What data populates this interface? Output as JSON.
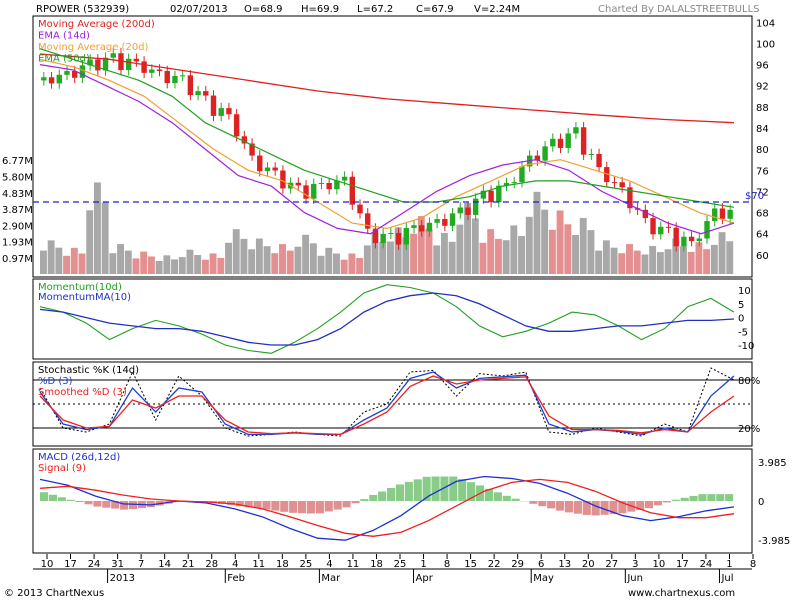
{
  "header": {
    "symbol": "RPOWER (532939)",
    "date": "02/07/2013",
    "open": "O=68.9",
    "high": "H=69.9",
    "low": "L=67.2",
    "close": "C=67.9",
    "volume": "V=2.24M",
    "credit": "Charted By DALALSTREETBULLS"
  },
  "footer": {
    "copyright": "© 2013 ChartNexus",
    "brand": "www.chartnexus.com"
  },
  "colors": {
    "up": "#22aa22",
    "down": "#dd2222",
    "ma200": "#e02020",
    "ema14": "#a020e0",
    "ma20": "#f0a030",
    "ema50": "#20a020",
    "volume_up": "#a8a8a8",
    "volume_down": "#e49090",
    "resistance": "#2020cc",
    "momentum": "#20a020",
    "momentum_ma": "#2030c0",
    "stoch_k": "#000000",
    "stoch_d": "#2040d0",
    "stoch_smooth": "#ee2020",
    "macd": "#2030d0",
    "signal": "#ee2020",
    "hist_pos": "#88cc88",
    "hist_neg": "#e09090"
  },
  "chart_data": [
    {
      "panel": "price",
      "type": "candlestick",
      "legend": [
        "Moving Average (200d)",
        "EMA (14d)",
        "Moving Average (20d)",
        "EMA (50d)"
      ],
      "y_ticks": [
        60,
        64,
        68,
        72,
        76,
        80,
        84,
        88,
        92,
        96,
        100,
        104
      ],
      "ylim": [
        56,
        105
      ],
      "volume_ticks": [
        "0.97M",
        "1.93M",
        "2.90M",
        "3.87M",
        "4.83M",
        "5.80M",
        "6.77M"
      ],
      "resistance_label": "$70",
      "resistance": 70,
      "x_dates": [
        "10",
        "17",
        "24",
        "31",
        "7",
        "14",
        "21",
        "28",
        "4",
        "11",
        "18",
        "25",
        "4",
        "11",
        "18",
        "25",
        "1",
        "8",
        "15",
        "22",
        "29",
        "6",
        "13",
        "20",
        "27",
        "3",
        "10",
        "17",
        "24",
        "1",
        "8"
      ],
      "x_months": [
        {
          "label": "2013",
          "index": 3
        },
        {
          "label": "Feb",
          "index": 8
        },
        {
          "label": "Mar",
          "index": 12
        },
        {
          "label": "Apr",
          "index": 16
        },
        {
          "label": "May",
          "index": 21
        },
        {
          "label": "Jun",
          "index": 25
        },
        {
          "label": "Jul",
          "index": 29
        }
      ],
      "weekly_close": [
        93,
        94,
        96,
        97,
        96,
        94,
        93,
        89,
        86,
        78,
        75,
        72,
        73,
        74,
        64,
        63,
        65,
        66,
        68,
        71,
        73,
        78,
        81,
        83,
        76,
        72,
        66,
        64,
        62,
        68
      ],
      "ma200": [
        98,
        97,
        95,
        93,
        91,
        89.5,
        88.5,
        87.5,
        86.5,
        85.6,
        85
      ],
      "ma200_t": [
        0,
        0.1,
        0.2,
        0.3,
        0.4,
        0.5,
        0.6,
        0.7,
        0.8,
        0.9,
        1
      ],
      "ma20": [
        97,
        95.5,
        93,
        90,
        85,
        80,
        76,
        74,
        70,
        66,
        65,
        67,
        71,
        74,
        77,
        78,
        76,
        74,
        71,
        68,
        66
      ],
      "ema14": [
        96,
        95,
        92,
        89,
        85,
        80,
        75,
        73,
        68,
        65,
        64,
        68,
        72,
        75,
        77,
        78,
        76,
        72,
        69,
        66,
        64,
        66
      ],
      "ema50": [
        99,
        97,
        95,
        93,
        90,
        85,
        82,
        79,
        76,
        74,
        72,
        70,
        70,
        71,
        73,
        74,
        74,
        73,
        72,
        71,
        70,
        69
      ],
      "volume_millions": [
        1.8,
        1.4,
        4.9,
        1.6,
        1.2,
        1.0,
        1.3,
        1.1,
        2.4,
        1.9,
        1.6,
        2.1,
        1.4,
        1.1,
        2.2,
        2.5,
        3.1,
        2.2,
        3.8,
        2.4,
        2.6,
        4.4,
        3.4,
        3.0,
        1.8,
        1.6,
        1.5,
        1.9,
        1.7,
        2.24
      ]
    },
    {
      "panel": "momentum",
      "type": "line",
      "legend": [
        "Momentum(10d)",
        "MomentumMA(10)"
      ],
      "y_ticks": [
        10,
        5,
        0,
        -5,
        -10
      ],
      "ylim": [
        -14,
        13
      ],
      "series": [
        {
          "name": "Momentum(10d)",
          "values": [
            4,
            2,
            -2,
            -8,
            -4,
            -1,
            -3,
            -6,
            -10,
            -12,
            -13,
            -9,
            -4,
            2,
            9,
            12,
            11,
            9,
            4,
            -3,
            -7,
            -5,
            -2,
            2,
            1,
            -3,
            -8,
            -4,
            4,
            7,
            2
          ]
        },
        {
          "name": "MomentumMA(10)",
          "values": [
            3,
            2,
            0,
            -2,
            -3,
            -4,
            -4,
            -5,
            -7,
            -9,
            -10,
            -10,
            -8,
            -4,
            2,
            6,
            8,
            9,
            8,
            5,
            1,
            -3,
            -5,
            -5,
            -4,
            -3,
            -3,
            -2,
            -1,
            -1,
            -0.5
          ]
        }
      ]
    },
    {
      "panel": "stochastic",
      "type": "line",
      "legend": [
        "Stochastic %K (14d)",
        "%D (3)",
        "Smoothed %D (3)"
      ],
      "y_ticks": [
        "80%",
        "20%"
      ],
      "ylim": [
        0,
        100
      ],
      "series": [
        {
          "name": "Stochastic %K (14d)",
          "values": [
            70,
            20,
            15,
            25,
            90,
            30,
            85,
            60,
            20,
            10,
            12,
            15,
            12,
            10,
            40,
            50,
            90,
            92,
            60,
            88,
            85,
            90,
            15,
            12,
            20,
            15,
            10,
            25,
            15,
            95,
            80
          ]
        },
        {
          "name": "%D (3)",
          "values": [
            65,
            25,
            18,
            22,
            70,
            40,
            70,
            65,
            25,
            12,
            12,
            14,
            12,
            12,
            30,
            45,
            82,
            90,
            70,
            82,
            84,
            86,
            25,
            15,
            18,
            16,
            12,
            20,
            15,
            60,
            85
          ]
        },
        {
          "name": "Smoothed %D (3)",
          "values": [
            60,
            30,
            20,
            22,
            55,
            45,
            60,
            60,
            30,
            15,
            13,
            14,
            13,
            12,
            25,
            40,
            72,
            85,
            75,
            80,
            82,
            84,
            35,
            18,
            18,
            17,
            14,
            18,
            15,
            40,
            60
          ]
        }
      ]
    },
    {
      "panel": "macd",
      "type": "line",
      "legend": [
        "MACD (26d,12d)",
        "Signal (9)"
      ],
      "y_ticks": [
        "3.985",
        "0",
        "-3.985"
      ],
      "ylim": [
        -5,
        5
      ],
      "series": [
        {
          "name": "MACD (26d,12d)",
          "values": [
            2.2,
            1.6,
            0.5,
            -0.3,
            -0.4,
            0,
            -0.2,
            -0.8,
            -1.6,
            -2.8,
            -3.8,
            -4.0,
            -3.0,
            -1.5,
            0.5,
            2.0,
            2.5,
            2.3,
            1.8,
            0.8,
            -0.5,
            -1.5,
            -2.0,
            -1.6,
            -1.0,
            -0.6
          ]
        },
        {
          "name": "Signal (9)",
          "values": [
            1.3,
            1.5,
            1.1,
            0.6,
            0.2,
            0.0,
            -0.1,
            -0.3,
            -0.8,
            -1.6,
            -2.5,
            -3.3,
            -3.6,
            -3.2,
            -2.0,
            -0.5,
            1.0,
            1.9,
            2.2,
            1.9,
            1.0,
            -0.2,
            -1.2,
            -1.7,
            -1.7,
            -1.3
          ]
        }
      ]
    }
  ]
}
